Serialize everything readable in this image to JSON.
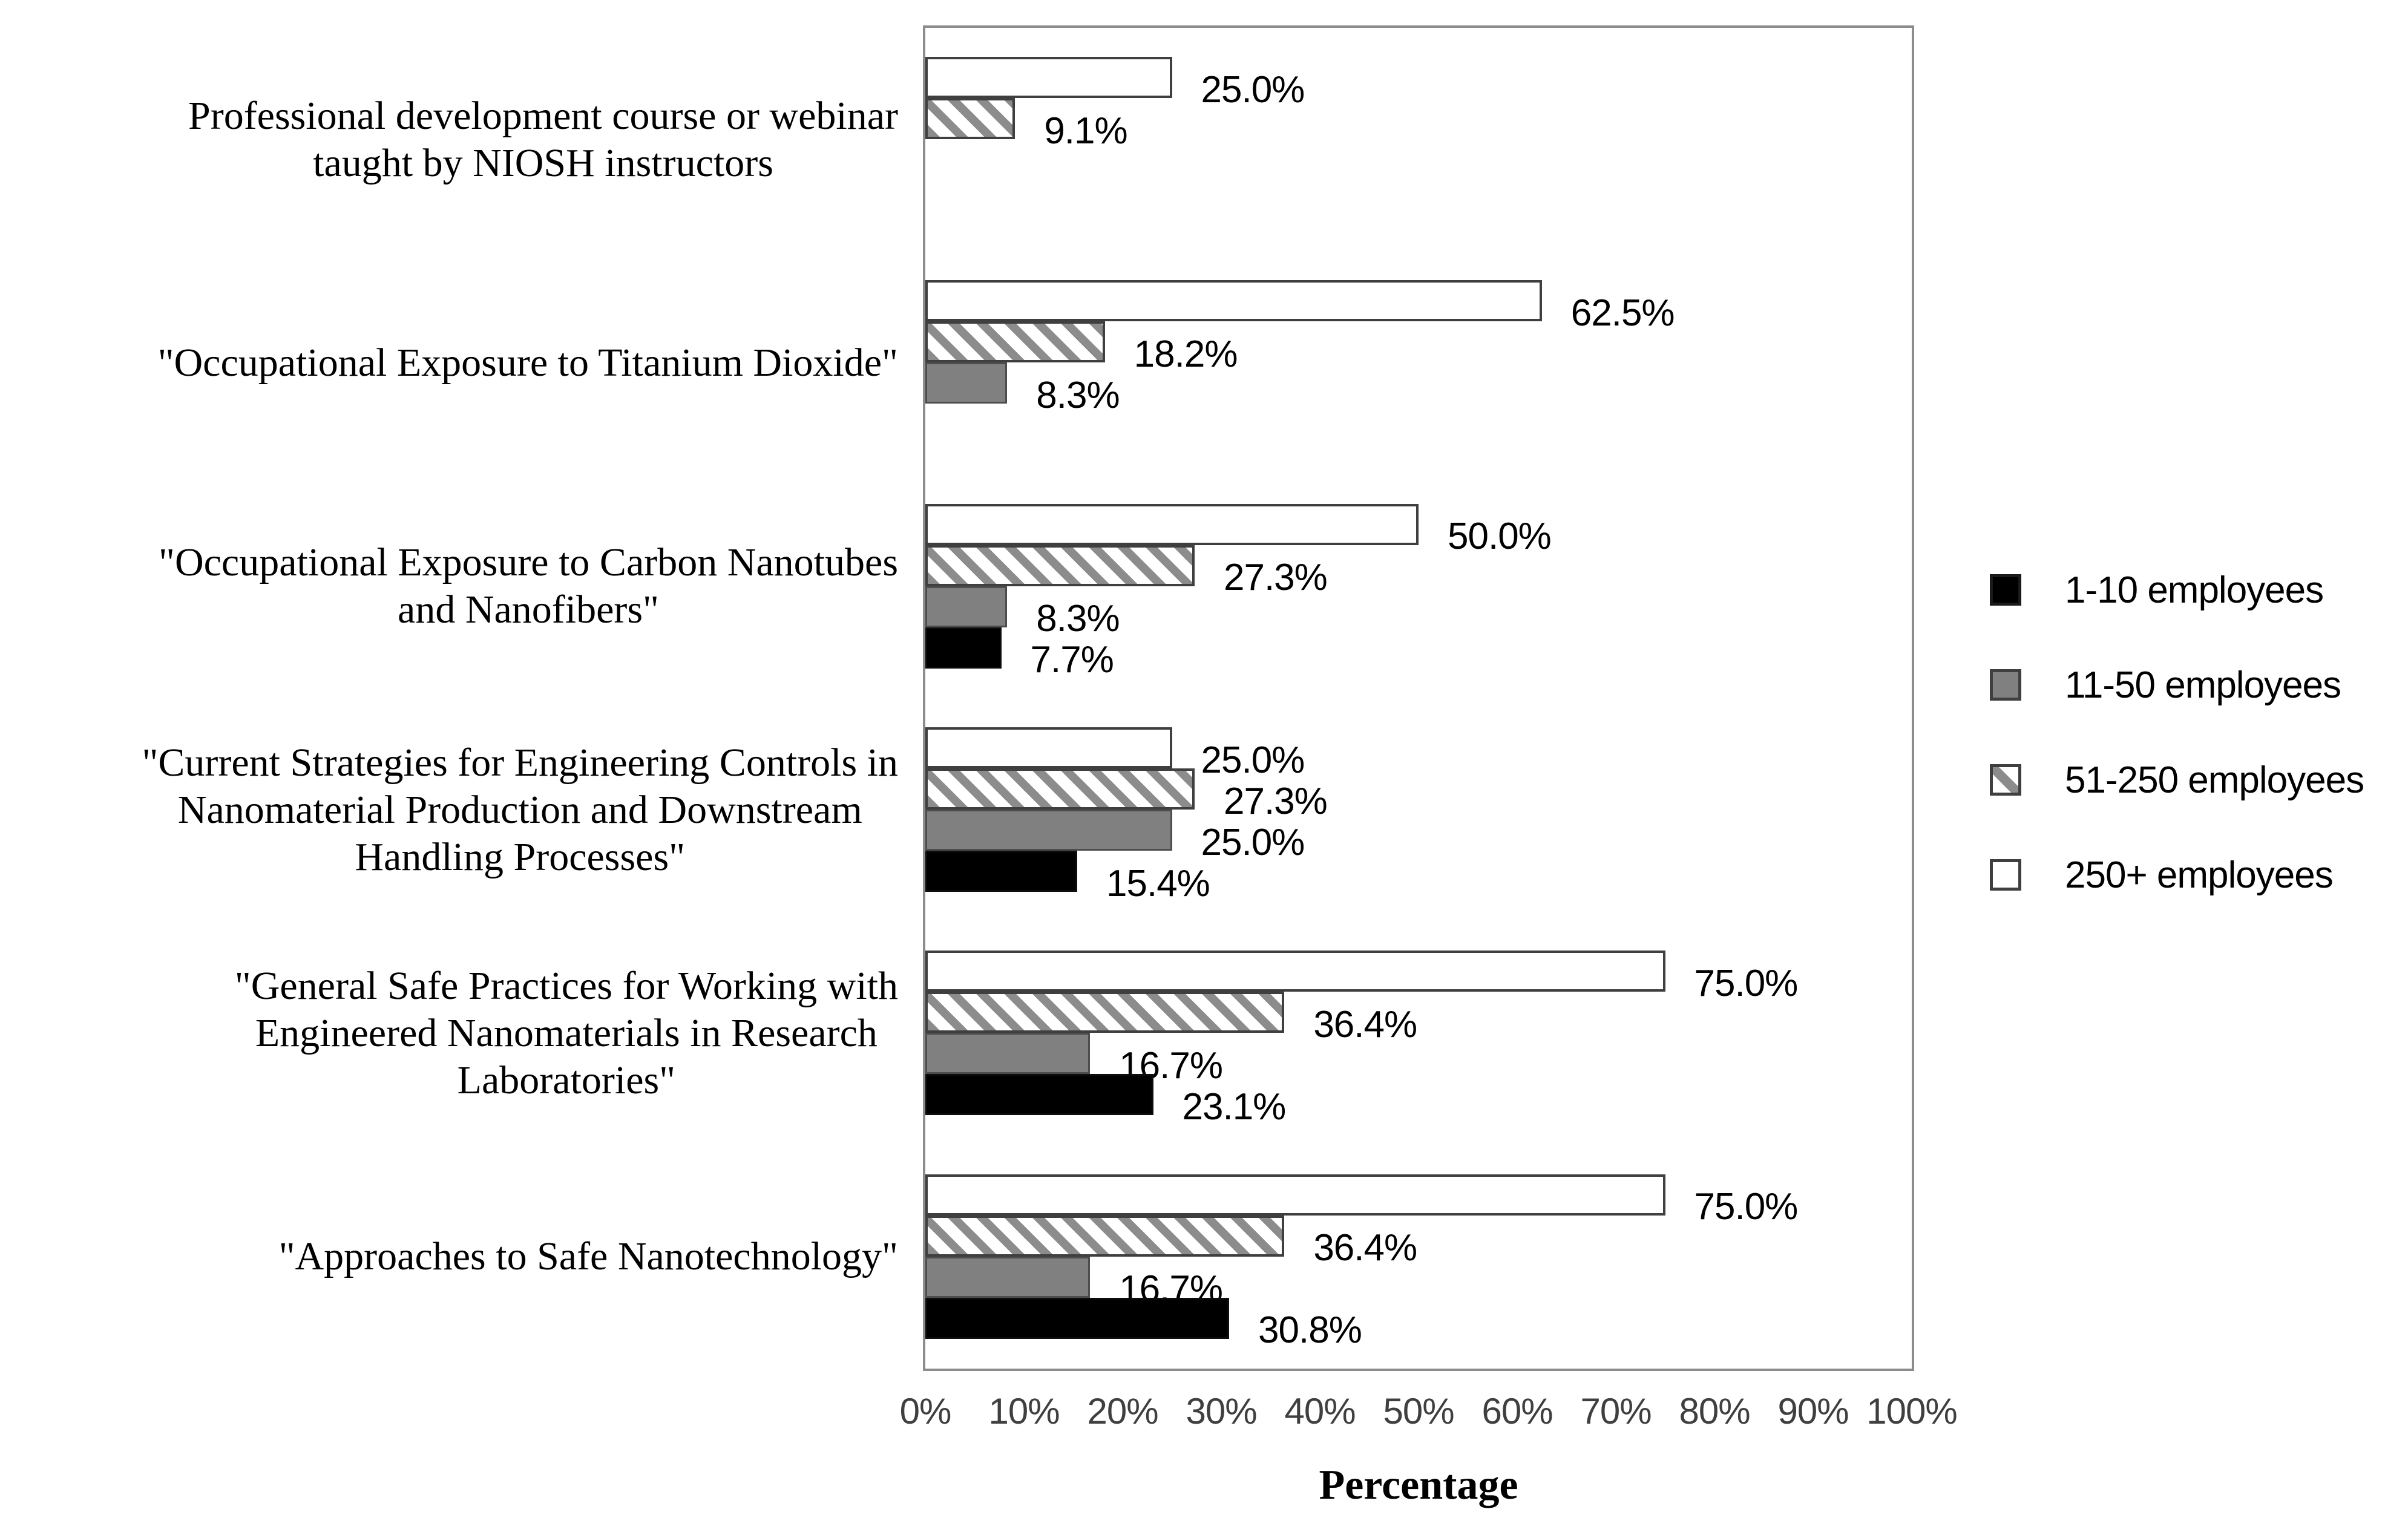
{
  "chart_data": {
    "type": "bar",
    "orientation": "horizontal",
    "title": "",
    "xlabel": "Percentage",
    "ylabel": "",
    "xlim": [
      0,
      100
    ],
    "grid": false,
    "legend_position": "right",
    "x_ticks": [
      "0%",
      "10%",
      "20%",
      "30%",
      "40%",
      "50%",
      "60%",
      "70%",
      "80%",
      "90%",
      "100%"
    ],
    "categories": [
      "Professional development course or webinar\ntaught by NIOSH instructors",
      "\"Occupational Exposure to Titanium Dioxide\"",
      "\"Occupational Exposure to Carbon Nanotubes\nand Nanofibers\"",
      "\"Current Strategies for Engineering Controls in\nNanomaterial Production and Downstream\nHandling Processes\"",
      "\"General Safe Practices for Working with\nEngineered Nanomaterials in Research\nLaboratories\"",
      "\"Approaches to Safe Nanotechnology\""
    ],
    "series": [
      {
        "name": "1-10 employees",
        "swatch": "black",
        "fill": "#000000",
        "values": [
          null,
          null,
          7.7,
          15.4,
          23.1,
          30.8
        ]
      },
      {
        "name": "11-50 employees",
        "swatch": "gray",
        "fill": "#808080",
        "values": [
          null,
          8.3,
          8.3,
          25.0,
          16.7,
          16.7
        ]
      },
      {
        "name": "51-250 employees",
        "swatch": "hatch",
        "fill": "hatch-diagonal",
        "values": [
          9.1,
          18.2,
          27.3,
          27.3,
          36.4,
          36.4
        ]
      },
      {
        "name": "250+ employees",
        "swatch": "white",
        "fill": "#ffffff",
        "values": [
          25.0,
          62.5,
          50.0,
          25.0,
          75.0,
          75.0
        ]
      }
    ],
    "value_label_format": "one-decimal-percent",
    "colors": {
      "black_series": "#000000",
      "gray_series": "#808080",
      "hatch_stripe": "#8c8c8c",
      "bar_border": "#3f3f3f",
      "plot_border": "#8c8c8c",
      "tick_text": "#3f3f3f",
      "label_text": "#000000"
    }
  }
}
